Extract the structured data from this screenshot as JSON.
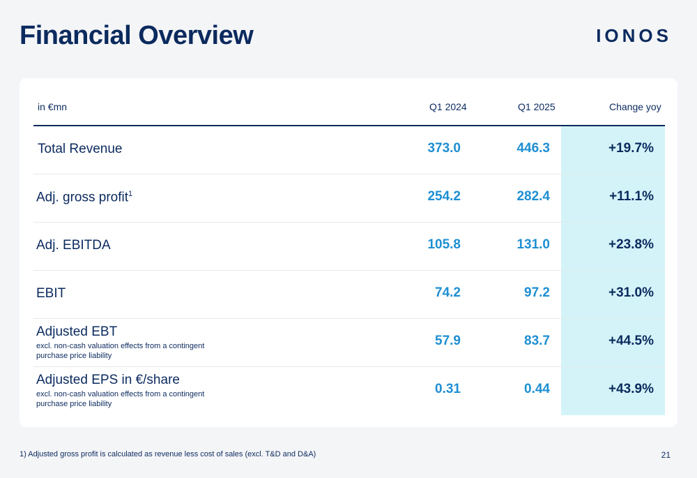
{
  "title": "Financial Overview",
  "logo": "IONOS",
  "table": {
    "headers": [
      "in €mn",
      "Q1 2024",
      "Q1 2025",
      "Change yoy"
    ],
    "rows": [
      {
        "label": "Total Revenue",
        "sup": "",
        "note": "",
        "q1_2024": "373.0",
        "q1_2025": "446.3",
        "change": "+19.7%"
      },
      {
        "label": "Adj. gross profit",
        "sup": "1",
        "note": "",
        "q1_2024": "254.2",
        "q1_2025": "282.4",
        "change": "+11.1%"
      },
      {
        "label": "Adj. EBITDA",
        "sup": "",
        "note": "",
        "q1_2024": "105.8",
        "q1_2025": "131.0",
        "change": "+23.8%"
      },
      {
        "label": "EBIT",
        "sup": "",
        "note": "",
        "q1_2024": "74.2",
        "q1_2025": "97.2",
        "change": "+31.0%"
      },
      {
        "label": "Adjusted EBT",
        "sup": "",
        "note": "excl. non-cash valuation effects from a contingent purchase price liability",
        "q1_2024": "57.9",
        "q1_2025": "83.7",
        "change": "+44.5%"
      },
      {
        "label": "Adjusted EPS in €/share",
        "sup": "",
        "note": "excl. non-cash valuation effects from a contingent purchase price liability",
        "q1_2024": "0.31",
        "q1_2025": "0.44",
        "change": "+43.9%"
      }
    ]
  },
  "footnote": "1) Adjusted gross profit is calculated as revenue less cost of sales (excl. T&D and D&A)",
  "page_number": "21",
  "colors": {
    "navy": "#0b2a5e",
    "blue_value": "#1e8fd2",
    "highlight": "#d3f3f8"
  }
}
